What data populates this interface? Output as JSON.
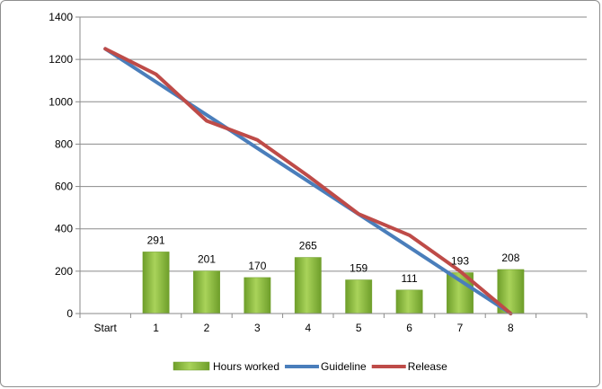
{
  "chart_data": {
    "type": "bar+line",
    "categories": [
      "Start",
      "1",
      "2",
      "3",
      "4",
      "5",
      "6",
      "7",
      "8"
    ],
    "ylim": [
      0,
      1400
    ],
    "yticks": [
      0,
      200,
      400,
      600,
      800,
      1000,
      1200,
      1400
    ],
    "grid": true,
    "legend_position": "bottom",
    "series": [
      {
        "name": "Hours worked",
        "type": "bar",
        "color": "#8dbf3e",
        "values": [
          null,
          291,
          201,
          170,
          265,
          159,
          111,
          193,
          208
        ],
        "labels": [
          "",
          "291",
          "201",
          "170",
          "265",
          "159",
          "111",
          "193",
          "208"
        ]
      },
      {
        "name": "Guideline",
        "type": "line",
        "color": "#4a7ebb",
        "values": [
          1250,
          1094,
          938,
          781,
          625,
          469,
          313,
          156,
          0
        ]
      },
      {
        "name": "Release",
        "type": "line",
        "color": "#be4b48",
        "values": [
          1250,
          1130,
          910,
          820,
          650,
          470,
          370,
          200,
          0
        ]
      }
    ]
  }
}
